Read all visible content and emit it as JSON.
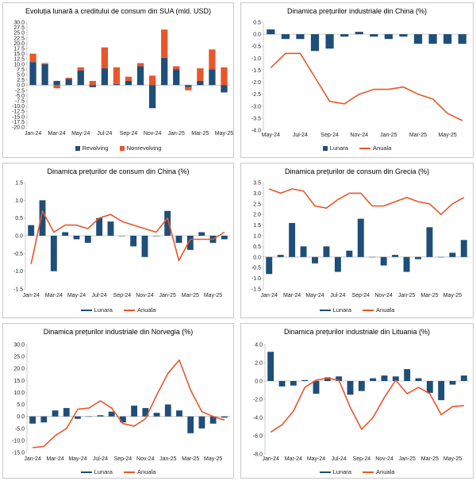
{
  "colors": {
    "blue": "#1f4e79",
    "orange": "#e8562a",
    "axis": "#bfbfbf"
  },
  "chart_data": [
    {
      "id": "c1",
      "type": "bar",
      "stacked": true,
      "title": "Evoluția lunară a creditului de consum din SUA (mld. USD)",
      "categories": [
        "Jan-24",
        "Feb-24",
        "Mar-24",
        "Apr-24",
        "May-24",
        "Jun-24",
        "Jul-24",
        "Aug-24",
        "Sep-24",
        "Oct-24",
        "Nov-24",
        "Dec-24",
        "Jan-25",
        "Feb-25",
        "Mar-25",
        "Apr-25",
        "May-25"
      ],
      "tick_labels": [
        "Jan-24",
        "Mar-24",
        "May-24",
        "Jul-24",
        "Sep-24",
        "Nov-24",
        "Jan-25",
        "Mar-25",
        "May-25"
      ],
      "ylim": [
        -20,
        30
      ],
      "ystep": 2.5,
      "yticks": [
        "30.0",
        "27.5",
        "25.0",
        "22.5",
        "20.0",
        "17.5",
        "15.0",
        "12.5",
        "10.0",
        "7.5",
        "5.0",
        "2.5",
        "0.0",
        "-2.5",
        "-5.0",
        "-7.5",
        "-10.0",
        "-12.5",
        "-15.0",
        "-17.5",
        "-20.0"
      ],
      "series": [
        {
          "name": "Revolving",
          "color": "#1f4e79",
          "values": [
            11,
            10,
            2,
            3,
            7,
            -1,
            8,
            0.5,
            2,
            9,
            -11,
            13,
            7.5,
            -1,
            2,
            7.5,
            -3.5
          ]
        },
        {
          "name": "Nonrevolving",
          "color": "#e8562a",
          "values": [
            4,
            0.5,
            -1.5,
            0.5,
            1.5,
            2,
            10,
            8,
            2,
            1.5,
            4.5,
            13.5,
            1.5,
            -1.5,
            6,
            9.5,
            8.5
          ]
        }
      ]
    },
    {
      "id": "c2",
      "type": "bar+line",
      "title": "Dinamica prețurilor industriale din China (%)",
      "categories": [
        "May-24",
        "Jun-24",
        "Jul-24",
        "Aug-24",
        "Sep-24",
        "Oct-24",
        "Nov-24",
        "Dec-24",
        "Jan-25",
        "Feb-25",
        "Mar-25",
        "Apr-25",
        "May-25",
        "Jun-25"
      ],
      "tick_labels": [
        "May-24",
        "Jul-24",
        "Sep-24",
        "Nov-24",
        "Jan-25",
        "Mar-25",
        "May-25"
      ],
      "ylim": [
        -4.0,
        0.5
      ],
      "ystep": 0.5,
      "yticks": [
        "0.5",
        "0.0",
        "-0.5",
        "-1.0",
        "-1.5",
        "-2.0",
        "-2.5",
        "-3.0",
        "-3.5",
        "-4.0"
      ],
      "series": [
        {
          "name": "Lunara",
          "kind": "bar",
          "values": [
            0.2,
            -0.2,
            -0.2,
            -0.7,
            -0.6,
            -0.1,
            0.1,
            -0.1,
            -0.2,
            -0.1,
            -0.4,
            -0.4,
            -0.4,
            -0.4
          ]
        },
        {
          "name": "Anuala",
          "kind": "line",
          "values": [
            -1.4,
            -0.8,
            -0.8,
            -1.8,
            -2.8,
            -2.9,
            -2.5,
            -2.3,
            -2.3,
            -2.2,
            -2.5,
            -2.7,
            -3.3,
            -3.6
          ]
        }
      ]
    },
    {
      "id": "c3",
      "type": "bar+line",
      "title": "Dinamica prețurilor de consum din China (%)",
      "categories": [
        "Jan-24",
        "Feb-24",
        "Mar-24",
        "Apr-24",
        "May-24",
        "Jun-24",
        "Jul-24",
        "Aug-24",
        "Sep-24",
        "Oct-24",
        "Nov-24",
        "Dec-24",
        "Jan-25",
        "Feb-25",
        "Mar-25",
        "Apr-25",
        "May-25",
        "Jun-25"
      ],
      "tick_labels": [
        "Jan-24",
        "Mar-24",
        "May-24",
        "Jul-24",
        "Sep-24",
        "Nov-24",
        "Jan-25",
        "Mar-25",
        "May-25"
      ],
      "ylim": [
        -1.5,
        1.5
      ],
      "ystep": 0.5,
      "yticks": [
        "1.5",
        "1.0",
        "0.5",
        "0.0",
        "-0.5",
        "-1.0",
        "-1.5"
      ],
      "series": [
        {
          "name": "Lunara",
          "kind": "bar",
          "values": [
            0.3,
            1.0,
            -1.0,
            0.1,
            -0.1,
            -0.2,
            0.5,
            0.4,
            0.0,
            -0.3,
            -0.6,
            0.0,
            0.7,
            -0.2,
            -0.4,
            0.1,
            -0.2,
            -0.1
          ]
        },
        {
          "name": "Anuala",
          "kind": "line",
          "values": [
            -0.8,
            0.7,
            0.1,
            0.3,
            0.3,
            0.2,
            0.5,
            0.6,
            0.4,
            0.3,
            0.2,
            0.1,
            0.5,
            -0.7,
            -0.1,
            -0.1,
            -0.1,
            0.1
          ]
        }
      ]
    },
    {
      "id": "c4",
      "type": "bar+line",
      "title": "Dinamica prețurilor de consum din Grecia (%)",
      "categories": [
        "Jan-24",
        "Feb-24",
        "Mar-24",
        "Apr-24",
        "May-24",
        "Jun-24",
        "Jul-24",
        "Aug-24",
        "Sep-24",
        "Oct-24",
        "Nov-24",
        "Dec-24",
        "Jan-25",
        "Feb-25",
        "Mar-25",
        "Apr-25",
        "May-25",
        "Jun-25"
      ],
      "tick_labels": [
        "Jan-24",
        "Mar-24",
        "May-24",
        "Jul-24",
        "Sep-24",
        "Nov-24",
        "Jan-25",
        "Mar-25",
        "May-25"
      ],
      "ylim": [
        -1.5,
        3.5
      ],
      "ystep": 0.5,
      "yticks": [
        "3.5",
        "3.0",
        "2.5",
        "2.0",
        "1.5",
        "1.0",
        "0.5",
        "0.0",
        "-0.5",
        "-1.0",
        "-1.5"
      ],
      "series": [
        {
          "name": "Lunara",
          "kind": "bar",
          "values": [
            -0.8,
            0.1,
            1.6,
            0.5,
            -0.3,
            0.5,
            -0.7,
            0.3,
            1.8,
            0.0,
            -0.4,
            0.1,
            -0.7,
            -0.1,
            1.4,
            0.0,
            0.2,
            0.8
          ]
        },
        {
          "name": "Anuala",
          "kind": "line",
          "values": [
            3.2,
            3.0,
            3.2,
            3.1,
            2.4,
            2.3,
            2.7,
            3.0,
            3.0,
            2.4,
            2.4,
            2.6,
            2.8,
            2.6,
            2.5,
            2.0,
            2.5,
            2.8
          ]
        }
      ]
    },
    {
      "id": "c5",
      "type": "bar+line",
      "title": "Dinamica prețurilor industriale din Norvegia (%)",
      "categories": [
        "Jan-24",
        "Feb-24",
        "Mar-24",
        "Apr-24",
        "May-24",
        "Jun-24",
        "Jul-24",
        "Aug-24",
        "Sep-24",
        "Oct-24",
        "Nov-24",
        "Dec-24",
        "Jan-25",
        "Feb-25",
        "Mar-25",
        "Apr-25",
        "May-25",
        "Jun-25"
      ],
      "tick_labels": [
        "Jan-24",
        "Mar-24",
        "May-24",
        "Jul-24",
        "Sep-24",
        "Nov-24",
        "Jan-25",
        "Mar-25",
        "May-25"
      ],
      "ylim": [
        -15,
        30
      ],
      "ystep": 5,
      "yticks": [
        "30.0",
        "25.0",
        "20.0",
        "15.0",
        "10.0",
        "5.0",
        "0.0",
        "-5.0",
        "-10.0",
        "-15.0"
      ],
      "series": [
        {
          "name": "Lunara",
          "kind": "bar",
          "values": [
            -3,
            -2.5,
            2.5,
            3.5,
            -1,
            0,
            0.5,
            2,
            -2.5,
            4.5,
            3.5,
            1.5,
            5,
            2.5,
            -7,
            -5,
            -3,
            -0.5
          ]
        },
        {
          "name": "Anuala",
          "kind": "line",
          "values": [
            -13,
            -12.5,
            -8,
            -5,
            3,
            3.5,
            6.5,
            3.5,
            -3,
            -4,
            -1,
            9,
            18,
            23.5,
            11,
            2,
            0,
            -1.5
          ]
        }
      ]
    },
    {
      "id": "c6",
      "type": "bar+line",
      "title": "Dinamica prețurilor industriale din Lituania (%)",
      "categories": [
        "Jan-24",
        "Feb-24",
        "Mar-24",
        "Apr-24",
        "May-24",
        "Jun-24",
        "Jul-24",
        "Aug-24",
        "Sep-24",
        "Oct-24",
        "Nov-24",
        "Dec-24",
        "Jan-25",
        "Feb-25",
        "Mar-25",
        "Apr-25",
        "May-25",
        "Jun-25"
      ],
      "tick_labels": [
        "Jan-24",
        "Mar-24",
        "May-24",
        "Jul-24",
        "Sep-24",
        "Nov-24",
        "Jan-25",
        "Mar-25",
        "May-25"
      ],
      "ylim": [
        -8.0,
        4.0
      ],
      "ystep": 2,
      "yticks": [
        "4.0",
        "2.0",
        "0.0",
        "-2.0",
        "-4.0",
        "-6.0",
        "-8.0"
      ],
      "series": [
        {
          "name": "Lunara",
          "kind": "bar",
          "values": [
            3.2,
            -0.6,
            -0.5,
            0.1,
            -1.4,
            0.4,
            0.5,
            -1.5,
            -1.1,
            0.3,
            0.6,
            0.5,
            1.3,
            0.3,
            -1.3,
            -2.1,
            -0.4,
            0.6
          ]
        },
        {
          "name": "Anuala",
          "kind": "line",
          "values": [
            -5.6,
            -4.8,
            -3.3,
            -0.7,
            0.1,
            0.3,
            0.1,
            -2.9,
            -5.3,
            -4.0,
            -1.8,
            0.1,
            -1.4,
            -0.7,
            -1.4,
            -3.7,
            -2.8,
            -2.7
          ]
        }
      ]
    }
  ]
}
